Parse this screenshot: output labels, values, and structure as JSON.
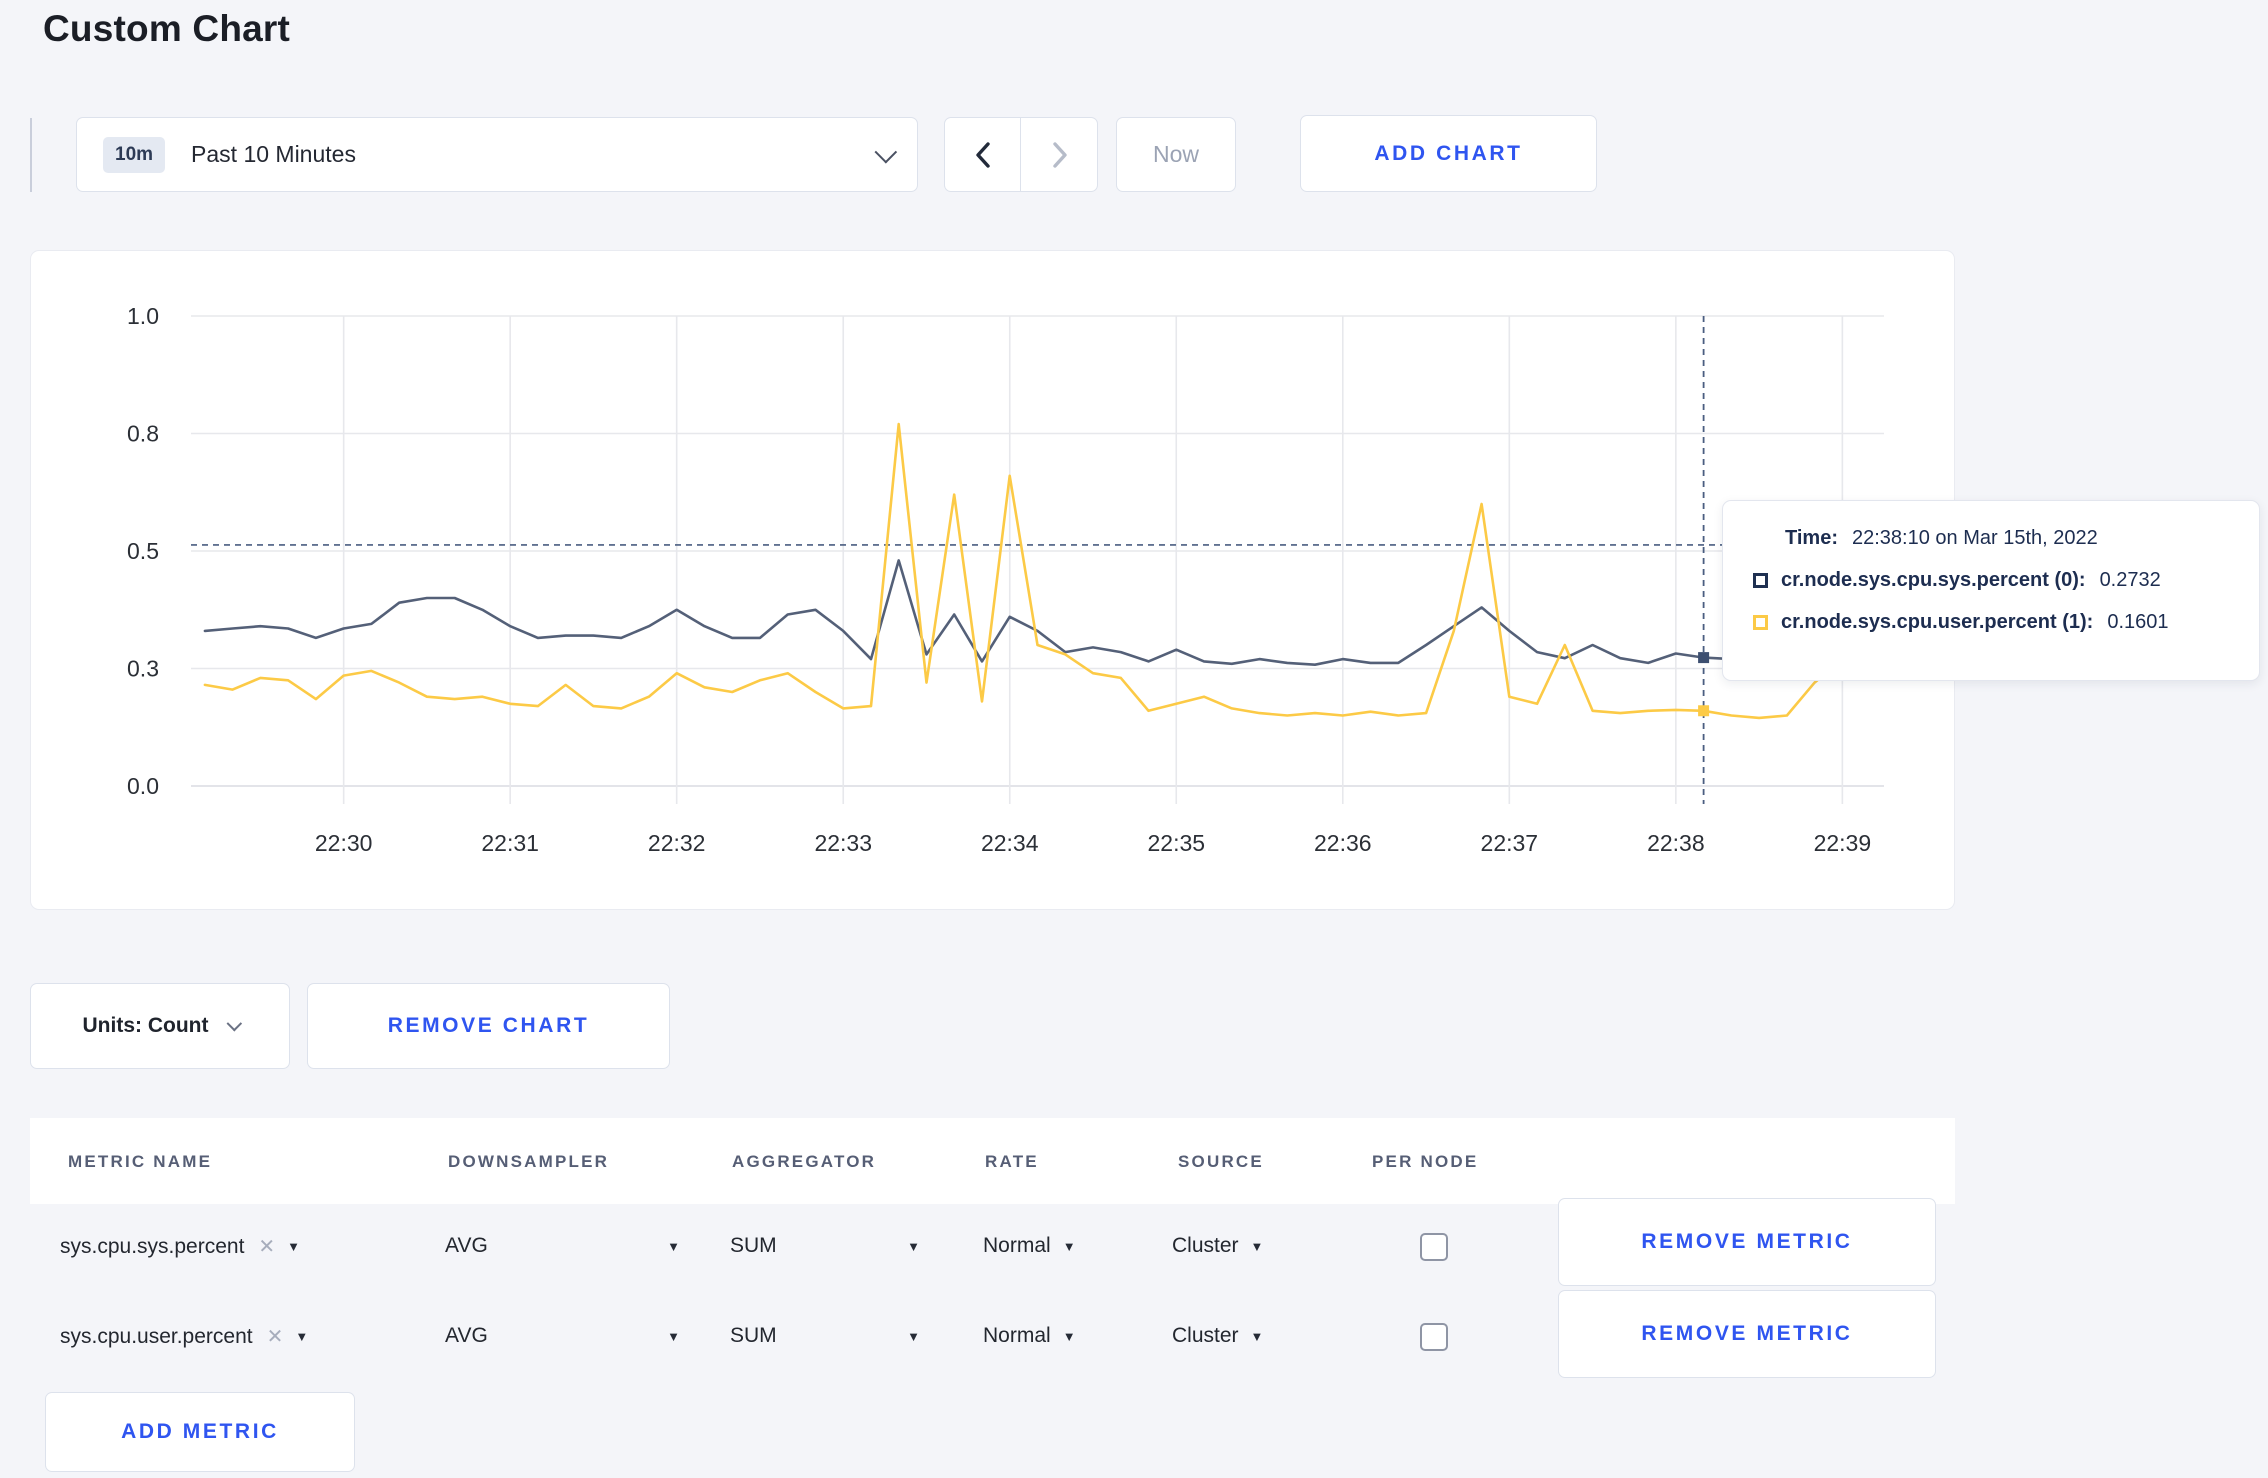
{
  "page": {
    "title": "Custom Chart"
  },
  "toolbar": {
    "time_range_badge": "10m",
    "time_range_label": "Past 10 Minutes",
    "now_label": "Now",
    "add_chart_label": "ADD CHART"
  },
  "chart_data": {
    "type": "line",
    "title": "",
    "xlabel": "",
    "ylabel": "",
    "grid": true,
    "legend_position": "tooltip",
    "x_axis": {
      "tick_labels": [
        "22:30",
        "22:31",
        "22:32",
        "22:33",
        "22:34",
        "22:35",
        "22:36",
        "22:37",
        "22:38",
        "22:39"
      ],
      "tick_seconds": [
        55,
        115,
        175,
        235,
        295,
        355,
        415,
        475,
        535,
        595
      ],
      "domain_seconds": 610,
      "start_label": "22:29:05"
    },
    "y_axis": {
      "tick_values": [
        0,
        0.25,
        0.5,
        0.75,
        1.0
      ],
      "tick_labels": [
        "0.0",
        "0.3",
        "0.5",
        "0.8",
        "1.0"
      ],
      "ylim": [
        0,
        1.0
      ]
    },
    "sampling": {
      "start_offset_seconds": 5,
      "interval_seconds": 10,
      "first_point_time": "22:29:10"
    },
    "series": [
      {
        "name": "cr.node.sys.cpu.sys.percent",
        "color": "#546078",
        "values": [
          0.33,
          0.335,
          0.34,
          0.335,
          0.315,
          0.335,
          0.345,
          0.39,
          0.4,
          0.4,
          0.375,
          0.34,
          0.315,
          0.32,
          0.32,
          0.315,
          0.34,
          0.375,
          0.34,
          0.315,
          0.315,
          0.365,
          0.375,
          0.33,
          0.27,
          0.48,
          0.28,
          0.365,
          0.265,
          0.36,
          0.33,
          0.285,
          0.295,
          0.285,
          0.265,
          0.29,
          0.265,
          0.26,
          0.27,
          0.262,
          0.258,
          0.27,
          0.262,
          0.262,
          0.3,
          0.34,
          0.38,
          0.33,
          0.285,
          0.272,
          0.3,
          0.272,
          0.262,
          0.282,
          0.2732,
          0.27,
          0.3,
          0.28,
          0.28,
          0.285,
          0.29
        ]
      },
      {
        "name": "cr.node.sys.cpu.user.percent",
        "color": "#fcca46",
        "values": [
          0.215,
          0.205,
          0.23,
          0.225,
          0.185,
          0.235,
          0.245,
          0.22,
          0.19,
          0.185,
          0.19,
          0.175,
          0.17,
          0.215,
          0.17,
          0.165,
          0.19,
          0.24,
          0.21,
          0.2,
          0.225,
          0.24,
          0.2,
          0.165,
          0.17,
          0.77,
          0.22,
          0.62,
          0.18,
          0.66,
          0.3,
          0.28,
          0.24,
          0.23,
          0.16,
          0.175,
          0.19,
          0.165,
          0.155,
          0.15,
          0.155,
          0.15,
          0.158,
          0.15,
          0.155,
          0.33,
          0.6,
          0.19,
          0.175,
          0.3,
          0.16,
          0.155,
          0.16,
          0.162,
          0.1601,
          0.15,
          0.145,
          0.15,
          0.22,
          0.27,
          0.23
        ]
      }
    ],
    "crosshair": {
      "time_seconds": 545,
      "time_label": "22:38:10",
      "hline_value": 0.513,
      "points": [
        {
          "series": 0,
          "value": 0.2732
        },
        {
          "series": 1,
          "value": 0.1601
        }
      ]
    }
  },
  "tooltip": {
    "time_label": "Time:",
    "time_value": "22:38:10 on Mar 15th, 2022",
    "rows": [
      {
        "label": "cr.node.sys.cpu.sys.percent (0):",
        "value": "0.2732",
        "swatch_color": "#1f3051"
      },
      {
        "label": "cr.node.sys.cpu.user.percent (1):",
        "value": "0.1601",
        "swatch_color": "#fcca46"
      }
    ]
  },
  "chart_footer": {
    "units_label": "Units: Count",
    "remove_chart_label": "REMOVE CHART"
  },
  "metrics_table": {
    "headers": [
      "METRIC NAME",
      "DOWNSAMPLER",
      "AGGREGATOR",
      "RATE",
      "SOURCE",
      "PER NODE"
    ],
    "rows": [
      {
        "metric": "sys.cpu.sys.percent",
        "close_icon": "✕",
        "downsampler": "AVG",
        "aggregator": "SUM",
        "rate": "Normal",
        "source": "Cluster",
        "per_node_checked": false,
        "remove_label": "REMOVE METRIC"
      },
      {
        "metric": "sys.cpu.user.percent",
        "close_icon": "✕",
        "downsampler": "AVG",
        "aggregator": "SUM",
        "rate": "Normal",
        "source": "Cluster",
        "per_node_checked": false,
        "remove_label": "REMOVE METRIC"
      }
    ],
    "add_metric_label": "ADD METRIC"
  },
  "colors": {
    "accent_blue": "#2f55f0",
    "series_sys": "#546078",
    "series_user": "#fcca46",
    "crosshair": "#4a5d80",
    "gridline": "#e7e8ec"
  }
}
